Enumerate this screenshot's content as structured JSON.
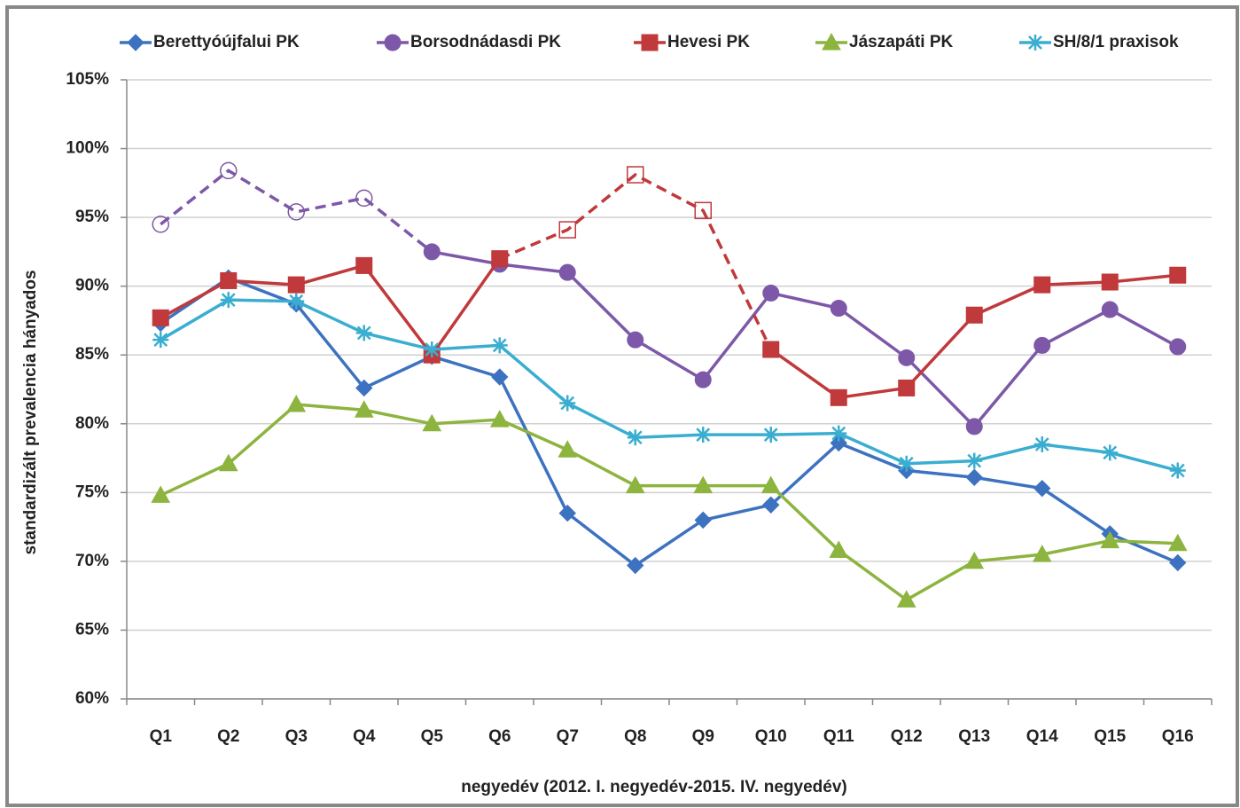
{
  "chart_data": {
    "type": "line",
    "y_label": "standardizált prevalencia hányados",
    "x_label": "negyedév (2012. I. negyedév-2015. IV. negyedév)",
    "categories": [
      "Q1",
      "Q2",
      "Q3",
      "Q4",
      "Q5",
      "Q6",
      "Q7",
      "Q8",
      "Q9",
      "Q10",
      "Q11",
      "Q12",
      "Q13",
      "Q14",
      "Q15",
      "Q16"
    ],
    "ylim": [
      60,
      105
    ],
    "yticks": [
      {
        "value": 60,
        "label": "60%"
      },
      {
        "value": 65,
        "label": "65%"
      },
      {
        "value": 70,
        "label": "70%"
      },
      {
        "value": 75,
        "label": "75%"
      },
      {
        "value": 80,
        "label": "80%"
      },
      {
        "value": 85,
        "label": "85%"
      },
      {
        "value": 90,
        "label": "90%"
      },
      {
        "value": 95,
        "label": "95%"
      },
      {
        "value": 100,
        "label": "100%"
      },
      {
        "value": 105,
        "label": "105%"
      }
    ],
    "grid": true,
    "legend": "top",
    "series": [
      {
        "name": "Berettyóújfalui PK",
        "color": "#3d72c0",
        "marker": "diamond",
        "values": [
          87.3,
          90.6,
          88.7,
          82.6,
          84.9,
          83.4,
          73.5,
          69.7,
          73.0,
          74.1,
          78.6,
          76.6,
          76.1,
          75.3,
          72.0,
          69.9
        ]
      },
      {
        "name": "Borsodnádasdi PK",
        "color": "#7d58a8",
        "marker": "circle",
        "values": [
          94.5,
          98.4,
          95.4,
          96.4,
          92.5,
          91.6,
          91.0,
          86.1,
          83.2,
          89.5,
          88.4,
          84.8,
          79.8,
          85.7,
          88.3,
          85.6
        ],
        "dashed_segments": [
          0,
          4
        ],
        "hollow_points": [
          0,
          1,
          2,
          3
        ]
      },
      {
        "name": "Hevesi PK",
        "color": "#c0393b",
        "marker": "square",
        "values": [
          87.7,
          90.4,
          90.1,
          91.5,
          85.0,
          92.0,
          94.1,
          98.1,
          95.5,
          85.4,
          81.9,
          82.6,
          87.9,
          90.1,
          90.3,
          90.8
        ],
        "dashed_segments": [
          5,
          9
        ],
        "hollow_points": [
          6,
          7,
          8
        ]
      },
      {
        "name": "Jászapáti PK",
        "color": "#8cb43e",
        "marker": "triangle",
        "values": [
          74.8,
          77.1,
          81.4,
          81.0,
          80.0,
          80.3,
          78.1,
          75.5,
          75.5,
          75.5,
          70.8,
          67.2,
          70.0,
          70.5,
          71.5,
          71.3
        ]
      },
      {
        "name": "SH/8/1 praxisok",
        "color": "#3aaed0",
        "marker": "asterisk",
        "values": [
          86.1,
          89.0,
          88.9,
          86.6,
          85.4,
          85.7,
          81.5,
          79.0,
          79.2,
          79.2,
          79.3,
          77.1,
          77.3,
          78.5,
          77.9,
          76.6
        ]
      }
    ]
  }
}
